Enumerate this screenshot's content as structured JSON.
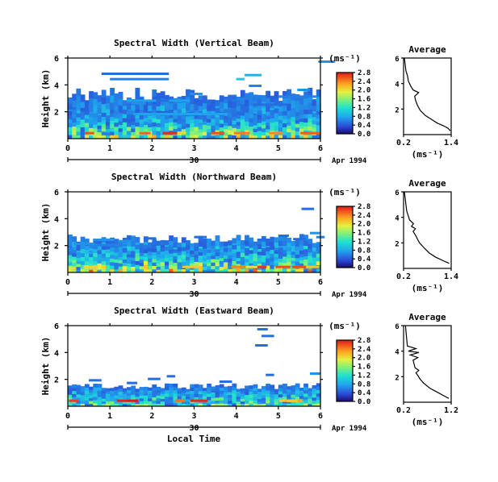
{
  "chart_data": {
    "type": "heatmap",
    "panels": [
      {
        "title": "Spectral Width (Vertical Beam)",
        "ylabel": "Height (km)",
        "ytick_labels": [
          "2",
          "4",
          "6"
        ],
        "xtick_labels": [
          "0",
          "1",
          "2",
          "3",
          "4",
          "5",
          "6"
        ],
        "xlim": [
          0,
          6
        ],
        "ylim": [
          0,
          6
        ],
        "date_tick_label": "30",
        "date_label": "Apr 1994",
        "colorbar_unit": "(ms⁻¹)",
        "colorbar_ticks": [
          "2.8",
          "2.4",
          "2.0",
          "1.6",
          "1.2",
          "0.8",
          "0.4",
          "0.0"
        ],
        "colorbar_range": [
          0,
          2.8
        ],
        "avg": {
          "title": "Average",
          "xtick_labels": [
            "0.2",
            "1.4"
          ],
          "xlim": [
            0.2,
            1.4
          ],
          "ytick_labels": [
            "2",
            "4",
            "6"
          ],
          "ylim": [
            0,
            6
          ],
          "xlabel": "(ms⁻¹)",
          "profile": [
            [
              1.38,
              0.3
            ],
            [
              1.32,
              0.5
            ],
            [
              1.2,
              0.7
            ],
            [
              1.05,
              0.9
            ],
            [
              0.9,
              1.2
            ],
            [
              0.75,
              1.5
            ],
            [
              0.62,
              1.9
            ],
            [
              0.55,
              2.3
            ],
            [
              0.5,
              2.7
            ],
            [
              0.48,
              3.0
            ],
            [
              0.58,
              3.3
            ],
            [
              0.44,
              3.5
            ],
            [
              0.38,
              3.8
            ],
            [
              0.32,
              4.2
            ],
            [
              0.3,
              4.6
            ],
            [
              0.26,
              5.0
            ],
            [
              0.24,
              5.5
            ],
            [
              0.22,
              6.0
            ]
          ]
        },
        "high_layers": [
          [
            2.2,
            1.6
          ],
          [
            2.9,
            1.0
          ],
          [
            3.3,
            0.8
          ],
          [
            2.0,
            1.2
          ]
        ],
        "bands": [
          [
            1.4,
            1.5,
            2.8,
            0.45
          ],
          [
            1.55,
            2.25,
            1.8,
            0.45
          ],
          [
            4.0,
            0.2,
            4.4,
            0.6
          ],
          [
            4.2,
            0.4,
            4.7,
            0.5
          ],
          [
            5.95,
            0.4,
            5.7,
            0.4
          ],
          [
            0.8,
            1.6,
            4.8,
            0.3
          ],
          [
            1.0,
            1.4,
            4.4,
            0.35
          ],
          [
            2.9,
            0.3,
            3.3,
            0.4
          ],
          [
            4.3,
            0.3,
            3.9,
            0.35
          ],
          [
            5.45,
            0.3,
            3.6,
            0.4
          ],
          [
            3.7,
            0.3,
            3.0,
            0.3
          ],
          [
            1.5,
            0.35,
            2.6,
            0.4
          ],
          [
            2.1,
            0.3,
            2.8,
            0.3
          ],
          [
            4.4,
            0.8,
            2.5,
            0.3
          ],
          [
            5.0,
            0.9,
            3.1,
            0.35
          ]
        ]
      },
      {
        "title": "Spectral Width (Northward Beam)",
        "ylabel": "Height (km)",
        "ytick_labels": [
          "2",
          "4",
          "6"
        ],
        "xtick_labels": [
          "0",
          "1",
          "2",
          "3",
          "4",
          "5",
          "6"
        ],
        "xlim": [
          0,
          6
        ],
        "ylim": [
          0,
          6
        ],
        "date_tick_label": "30",
        "date_label": "Apr 1994",
        "colorbar_unit": "(ms⁻¹)",
        "colorbar_ticks": [
          "2.8",
          "2.4",
          "2.0",
          "1.6",
          "1.2",
          "0.8",
          "0.4",
          "0.0"
        ],
        "colorbar_range": [
          0,
          2.8
        ],
        "avg": {
          "title": "Average",
          "xtick_labels": [
            "0.2",
            "1.4"
          ],
          "xlim": [
            0.2,
            1.4
          ],
          "ytick_labels": [
            "2",
            "4",
            "6"
          ],
          "ylim": [
            0,
            6
          ],
          "xlabel": "(ms⁻¹)",
          "profile": [
            [
              1.35,
              0.4
            ],
            [
              1.2,
              0.6
            ],
            [
              1.0,
              0.9
            ],
            [
              0.85,
              1.2
            ],
            [
              0.72,
              1.6
            ],
            [
              0.6,
              2.0
            ],
            [
              0.55,
              2.3
            ],
            [
              0.5,
              2.6
            ],
            [
              0.44,
              2.9
            ],
            [
              0.5,
              3.1
            ],
            [
              0.4,
              3.3
            ],
            [
              0.45,
              3.5
            ],
            [
              0.35,
              3.8
            ],
            [
              0.32,
              4.1
            ],
            [
              0.28,
              4.5
            ],
            [
              0.26,
              5.0
            ],
            [
              0.24,
              5.5
            ],
            [
              0.22,
              6.0
            ]
          ]
        },
        "high_layers": [
          [
            2.0,
            1.8
          ],
          [
            2.5,
            1.2
          ],
          [
            1.8,
            1.4
          ]
        ],
        "bands": [
          [
            0.15,
            0.5,
            2.1,
            0.4
          ],
          [
            0.6,
            0.5,
            2.4,
            0.4
          ],
          [
            0.7,
            0.7,
            2.0,
            0.35
          ],
          [
            1.2,
            0.3,
            2.3,
            0.4
          ],
          [
            1.8,
            0.3,
            2.5,
            0.3
          ],
          [
            3.0,
            0.3,
            2.6,
            0.3
          ],
          [
            4.5,
            0.4,
            2.4,
            0.3
          ],
          [
            5.0,
            0.25,
            2.7,
            0.3
          ],
          [
            5.35,
            0.3,
            2.45,
            0.3
          ],
          [
            5.75,
            0.25,
            2.9,
            0.4
          ],
          [
            5.55,
            0.3,
            4.7,
            0.3
          ],
          [
            5.9,
            0.2,
            2.6,
            0.35
          ]
        ]
      },
      {
        "title": "Spectral Width (Eastward Beam)",
        "ylabel": "Height (km)",
        "ytick_labels": [
          "2",
          "4",
          "6"
        ],
        "xtick_labels": [
          "0",
          "1",
          "2",
          "3",
          "4",
          "5",
          "6"
        ],
        "xlim": [
          0,
          6
        ],
        "ylim": [
          0,
          6
        ],
        "date_tick_label": "30",
        "date_label": "Apr 1994",
        "colorbar_unit": "(ms⁻¹)",
        "colorbar_ticks": [
          "2.8",
          "2.4",
          "2.0",
          "1.6",
          "1.2",
          "0.8",
          "0.4",
          "0.0"
        ],
        "colorbar_range": [
          0,
          2.8
        ],
        "avg": {
          "title": "Average",
          "xtick_labels": [
            "0.2",
            "1.2"
          ],
          "xlim": [
            0.2,
            1.2
          ],
          "ytick_labels": [
            "2",
            "4",
            "6"
          ],
          "ylim": [
            0,
            6
          ],
          "xlabel": "(ms⁻¹)",
          "profile": [
            [
              1.15,
              0.3
            ],
            [
              1.05,
              0.5
            ],
            [
              0.9,
              0.8
            ],
            [
              0.75,
              1.1
            ],
            [
              0.62,
              1.5
            ],
            [
              0.55,
              1.8
            ],
            [
              0.5,
              2.1
            ],
            [
              0.46,
              2.3
            ],
            [
              0.52,
              2.5
            ],
            [
              0.44,
              2.7
            ],
            [
              0.42,
              3.0
            ],
            [
              0.4,
              3.3
            ],
            [
              0.5,
              3.5
            ],
            [
              0.34,
              3.7
            ],
            [
              0.52,
              3.9
            ],
            [
              0.3,
              4.0
            ],
            [
              0.46,
              4.2
            ],
            [
              0.28,
              4.4
            ],
            [
              0.27,
              4.8
            ],
            [
              0.26,
              5.2
            ],
            [
              0.25,
              5.6
            ],
            [
              0.24,
              6.0
            ]
          ]
        },
        "high_layers": [
          [
            1.2,
            1.4
          ],
          [
            1.5,
            1.0
          ]
        ],
        "bands": [
          [
            0.5,
            0.3,
            1.9,
            0.3
          ],
          [
            1.9,
            0.3,
            2.0,
            0.3
          ],
          [
            2.35,
            0.2,
            2.2,
            0.3
          ],
          [
            1.4,
            0.25,
            1.7,
            0.3
          ],
          [
            4.5,
            0.25,
            5.7,
            0.3
          ],
          [
            4.6,
            0.3,
            5.2,
            0.3
          ],
          [
            4.45,
            0.3,
            4.5,
            0.3
          ],
          [
            4.7,
            0.2,
            2.3,
            0.3
          ],
          [
            5.75,
            0.25,
            2.4,
            0.4
          ],
          [
            3.6,
            0.3,
            1.8,
            0.3
          ]
        ]
      }
    ]
  }
}
